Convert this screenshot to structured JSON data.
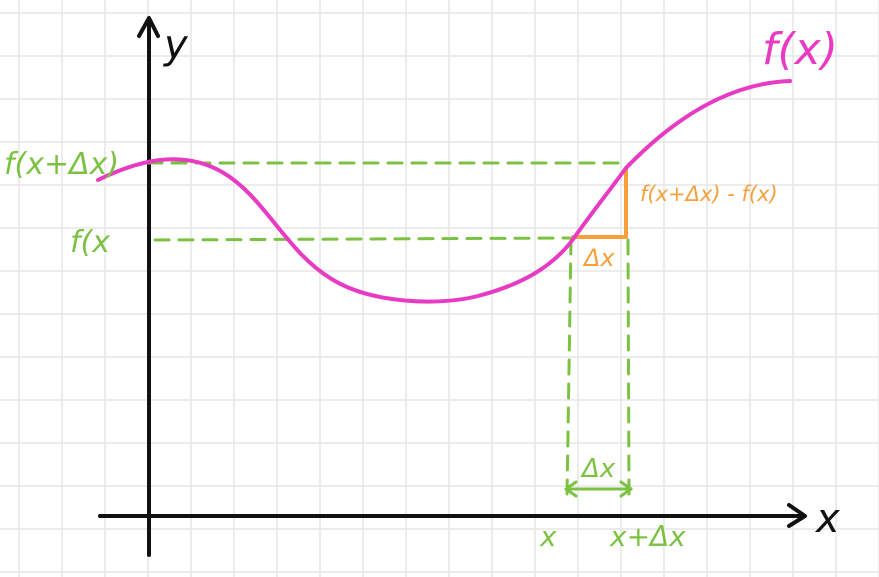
{
  "axes": {
    "x_label": "x",
    "y_label": "y"
  },
  "curve": {
    "label": "f(x)"
  },
  "left_labels": {
    "upper": "f(x+Δx)",
    "lower": "f(x"
  },
  "x_ticks": {
    "left": "x",
    "right": "x+Δx"
  },
  "triangle": {
    "vertical_label": "f(x+Δx) - f(x)",
    "horizontal_label": "Δx"
  },
  "bracket": {
    "label": "Δx"
  },
  "colors": {
    "grid": "#e6e6e6",
    "axis": "#111111",
    "curve": "#e83bc3",
    "guide": "#7cc242",
    "triangle": "#f5a03a"
  }
}
